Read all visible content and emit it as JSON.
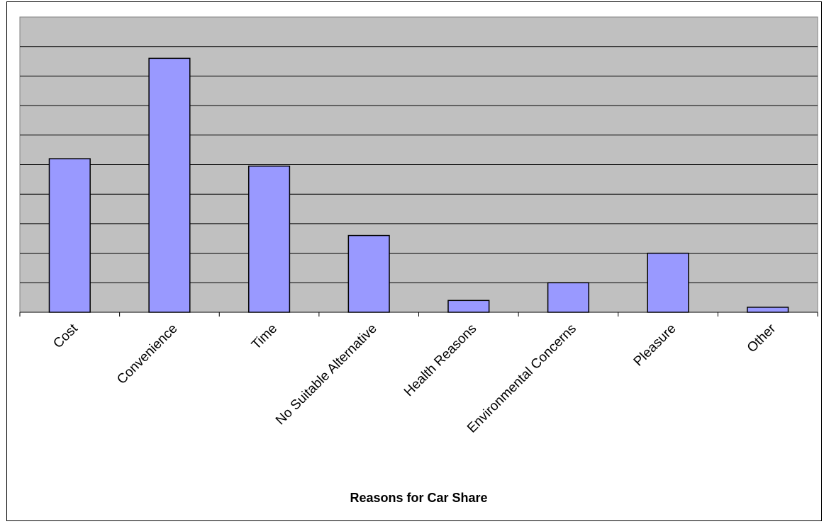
{
  "chart_data": {
    "type": "bar",
    "title": "",
    "xlabel": "Reasons for Car Share",
    "ylabel": "",
    "categories": [
      "Cost",
      "Convenience",
      "Time",
      "No Suitable Alternative",
      "Health Reasons",
      "Environmental Concerns",
      "Pleasure",
      "Other"
    ],
    "values": [
      5.2,
      8.6,
      4.95,
      2.6,
      0.4,
      1.0,
      2.0,
      0.17
    ],
    "ylim": [
      0,
      10
    ],
    "grid": true,
    "gridlines": 10,
    "legend": "none",
    "colors": {
      "plot_background": "#c0c0c0",
      "bar_fill": "#9999ff",
      "bar_stroke": "#000000",
      "gridline": "#000000"
    }
  }
}
